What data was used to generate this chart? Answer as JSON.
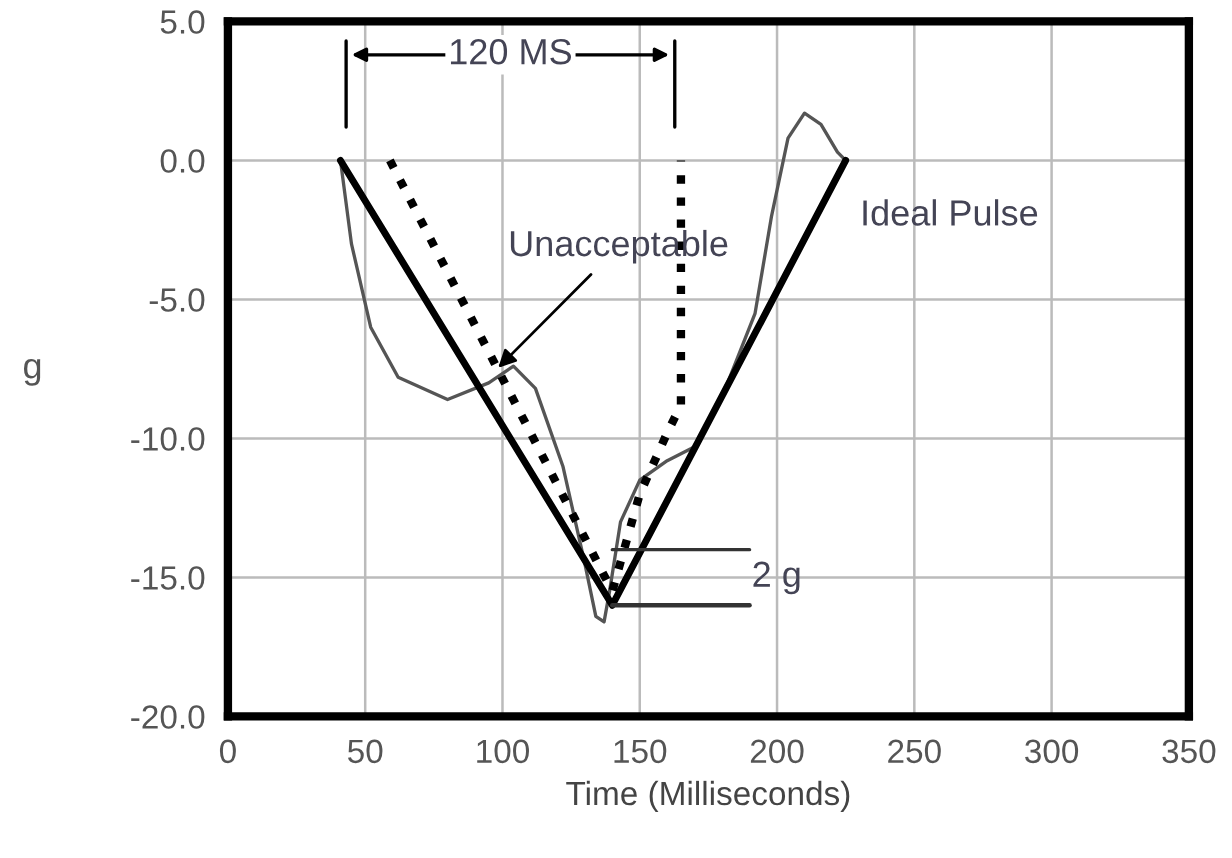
{
  "chart_data": {
    "type": "line",
    "xlabel": "Time (Milliseconds)",
    "ylabel": "g",
    "series": [
      {
        "color": "#555555",
        "line_style": "solid",
        "x": [
          41,
          45,
          52,
          62,
          80,
          95,
          104,
          112,
          122,
          130,
          134,
          137,
          139,
          143,
          150,
          160,
          170,
          182,
          192,
          198,
          204,
          210,
          216,
          222,
          225
        ],
        "values": [
          0,
          -3,
          -6,
          -7.8,
          -8.6,
          -8,
          -7.4,
          -8.2,
          -11,
          -14.5,
          -16.4,
          -16.6,
          -15.5,
          -13,
          -11.5,
          -10.8,
          -10.3,
          -8,
          -5.5,
          -2,
          0.8,
          1.7,
          1.3,
          0.3,
          0
        ]
      },
      {
        "color": "#000000",
        "line_style": "dotted",
        "x": [
          59,
          140,
          150,
          160,
          165,
          165
        ],
        "values": [
          0,
          -15.5,
          -12,
          -9.8,
          -8.8,
          0
        ]
      },
      {
        "color": "#000000",
        "line_style": "solid",
        "x": [
          41,
          140,
          225
        ],
        "values": [
          0,
          -16,
          0
        ]
      },
      {
        "color": "#333333",
        "line_style": "solid",
        "x": [
          140,
          190
        ],
        "values": [
          -14,
          -14
        ]
      },
      {
        "color": "#333333",
        "line_style": "solid",
        "x": [
          140,
          190
        ],
        "values": [
          -16,
          -16
        ]
      }
    ],
    "annotations": [
      {
        "text": "Unacceptable",
        "x": 97,
        "y": -7.6
      },
      {
        "text": "Ideal Pulse",
        "x": 210,
        "y": -2.5
      },
      "2 g",
      "120 MS"
    ],
    "xlim": [
      0,
      350
    ],
    "xticks": [
      0,
      50,
      100,
      150,
      200,
      250,
      300,
      350
    ],
    "ylim": [
      -20,
      5
    ],
    "yticks": [
      {
        "value": -20,
        "label": "-20.0"
      },
      {
        "value": -15,
        "label": "-15.0"
      },
      {
        "value": -10,
        "label": "-10.0"
      },
      {
        "value": -5,
        "label": "-5.0"
      },
      {
        "value": 0,
        "label": "0.0"
      },
      {
        "value": 5,
        "label": "5.0"
      }
    ],
    "grid": true,
    "legend": false
  }
}
